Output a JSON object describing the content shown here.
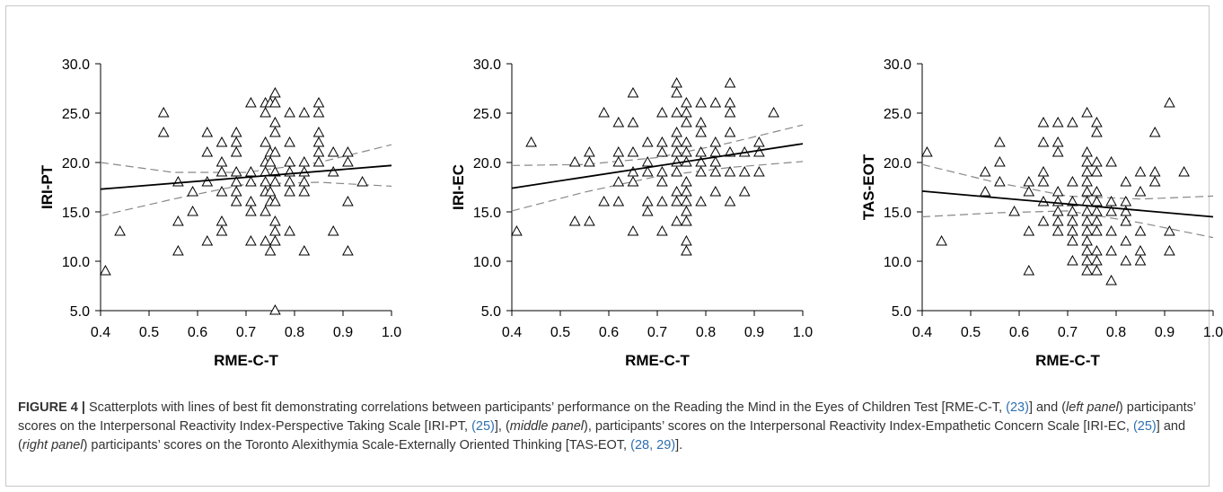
{
  "caption": {
    "label": "FIGURE 4 |",
    "segments": [
      {
        "t": " Scatterplots with lines of best fit demonstrating correlations between participants’ performance on the Reading the Mind in the Eyes of Children Test [RME-C-T, "
      },
      {
        "t": "(23)",
        "cite": true
      },
      {
        "t": "] and ("
      },
      {
        "t": "left panel",
        "i": true
      },
      {
        "t": ") participants’ scores on the Interpersonal Reactivity Index-Perspective Taking Scale [IRI-PT, "
      },
      {
        "t": "(25)",
        "cite": true
      },
      {
        "t": "], ("
      },
      {
        "t": "middle panel",
        "i": true
      },
      {
        "t": "), participants’ scores on the Interpersonal Reactivity Index-Empathetic Concern Scale [IRI-EC, "
      },
      {
        "t": "(25)",
        "cite": true
      },
      {
        "t": "] and ("
      },
      {
        "t": "right panel",
        "i": true
      },
      {
        "t": ") participants’ scores on the Toronto Alexithymia Scale-Externally Oriented Thinking [TAS-EOT, "
      },
      {
        "t": "(28, 29)",
        "cite": true
      },
      {
        "t": "]."
      }
    ]
  },
  "colors": {
    "cite": "#2f6fb0",
    "text": "#333333",
    "line": "#000000",
    "ci": "#888888"
  },
  "chart_data": [
    {
      "type": "scatter",
      "xlabel": "RME-C-T",
      "ylabel": "IRI-PT",
      "xlim": [
        0.4,
        1.0
      ],
      "ylim": [
        5.0,
        30.0
      ],
      "xticks": [
        "0.4",
        "0.5",
        "0.6",
        "0.7",
        "0.8",
        "0.9",
        "1.0"
      ],
      "yticks": [
        "5.0",
        "10.0",
        "15.0",
        "20.0",
        "25.0",
        "30.0"
      ],
      "marker": "open-triangle",
      "fit": {
        "x": [
          0.4,
          1.0
        ],
        "y": [
          17.3,
          19.7
        ]
      },
      "ci_upper": {
        "x": [
          0.4,
          0.55,
          0.7,
          0.85,
          1.0
        ],
        "y": [
          20.0,
          19.0,
          19.0,
          20.0,
          21.8
        ]
      },
      "ci_lower": {
        "x": [
          0.4,
          0.55,
          0.7,
          0.85,
          1.0
        ],
        "y": [
          14.6,
          16.3,
          17.8,
          18.0,
          17.6
        ]
      },
      "points": [
        [
          0.41,
          9
        ],
        [
          0.44,
          13
        ],
        [
          0.53,
          25
        ],
        [
          0.53,
          23
        ],
        [
          0.56,
          18
        ],
        [
          0.56,
          14
        ],
        [
          0.56,
          11
        ],
        [
          0.59,
          15
        ],
        [
          0.59,
          17
        ],
        [
          0.62,
          23
        ],
        [
          0.62,
          21
        ],
        [
          0.62,
          18
        ],
        [
          0.62,
          12
        ],
        [
          0.65,
          22
        ],
        [
          0.65,
          20
        ],
        [
          0.65,
          19
        ],
        [
          0.65,
          17
        ],
        [
          0.65,
          14
        ],
        [
          0.65,
          13
        ],
        [
          0.68,
          23
        ],
        [
          0.68,
          22
        ],
        [
          0.68,
          21
        ],
        [
          0.68,
          19
        ],
        [
          0.68,
          18
        ],
        [
          0.68,
          17
        ],
        [
          0.68,
          16
        ],
        [
          0.71,
          26
        ],
        [
          0.71,
          19
        ],
        [
          0.71,
          18
        ],
        [
          0.71,
          16
        ],
        [
          0.71,
          15
        ],
        [
          0.71,
          12
        ],
        [
          0.74,
          26
        ],
        [
          0.74,
          25
        ],
        [
          0.74,
          22
        ],
        [
          0.74,
          20
        ],
        [
          0.74,
          19
        ],
        [
          0.74,
          18
        ],
        [
          0.74,
          17
        ],
        [
          0.74,
          15
        ],
        [
          0.74,
          12
        ],
        [
          0.75,
          26
        ],
        [
          0.75,
          21
        ],
        [
          0.75,
          20
        ],
        [
          0.75,
          17
        ],
        [
          0.75,
          16
        ],
        [
          0.75,
          11
        ],
        [
          0.76,
          27
        ],
        [
          0.76,
          26
        ],
        [
          0.76,
          24
        ],
        [
          0.76,
          23
        ],
        [
          0.76,
          21
        ],
        [
          0.76,
          19
        ],
        [
          0.76,
          18
        ],
        [
          0.76,
          16
        ],
        [
          0.76,
          14
        ],
        [
          0.76,
          13
        ],
        [
          0.76,
          12
        ],
        [
          0.76,
          5
        ],
        [
          0.79,
          25
        ],
        [
          0.79,
          22
        ],
        [
          0.79,
          20
        ],
        [
          0.79,
          19
        ],
        [
          0.79,
          18
        ],
        [
          0.79,
          17
        ],
        [
          0.79,
          13
        ],
        [
          0.82,
          25
        ],
        [
          0.82,
          20
        ],
        [
          0.82,
          19
        ],
        [
          0.82,
          18
        ],
        [
          0.82,
          17
        ],
        [
          0.82,
          11
        ],
        [
          0.85,
          26
        ],
        [
          0.85,
          25
        ],
        [
          0.85,
          23
        ],
        [
          0.85,
          22
        ],
        [
          0.85,
          21
        ],
        [
          0.85,
          20
        ],
        [
          0.88,
          21
        ],
        [
          0.88,
          19
        ],
        [
          0.88,
          13
        ],
        [
          0.91,
          21
        ],
        [
          0.91,
          20
        ],
        [
          0.91,
          16
        ],
        [
          0.91,
          11
        ],
        [
          0.94,
          18
        ]
      ]
    },
    {
      "type": "scatter",
      "xlabel": "RME-C-T",
      "ylabel": "IRI-EC",
      "xlim": [
        0.4,
        1.0
      ],
      "ylim": [
        5.0,
        30.0
      ],
      "xticks": [
        "0.4",
        "0.5",
        "0.6",
        "0.7",
        "0.8",
        "0.9",
        "1.0"
      ],
      "yticks": [
        "5.0",
        "10.0",
        "15.0",
        "20.0",
        "25.0",
        "30.0"
      ],
      "marker": "open-triangle",
      "fit": {
        "x": [
          0.4,
          1.0
        ],
        "y": [
          17.4,
          21.9
        ]
      },
      "ci_upper": {
        "x": [
          0.4,
          0.55,
          0.7,
          0.85,
          1.0
        ],
        "y": [
          19.7,
          19.8,
          20.5,
          22.0,
          23.8
        ]
      },
      "ci_lower": {
        "x": [
          0.4,
          0.55,
          0.7,
          0.85,
          1.0
        ],
        "y": [
          15.1,
          17.0,
          18.6,
          19.5,
          20.1
        ]
      },
      "points": [
        [
          0.41,
          13
        ],
        [
          0.44,
          22
        ],
        [
          0.53,
          20
        ],
        [
          0.53,
          14
        ],
        [
          0.56,
          21
        ],
        [
          0.56,
          20
        ],
        [
          0.56,
          14
        ],
        [
          0.59,
          25
        ],
        [
          0.59,
          16
        ],
        [
          0.62,
          24
        ],
        [
          0.62,
          21
        ],
        [
          0.62,
          20
        ],
        [
          0.62,
          18
        ],
        [
          0.62,
          16
        ],
        [
          0.65,
          27
        ],
        [
          0.65,
          24
        ],
        [
          0.65,
          21
        ],
        [
          0.65,
          19
        ],
        [
          0.65,
          18
        ],
        [
          0.65,
          13
        ],
        [
          0.68,
          22
        ],
        [
          0.68,
          20
        ],
        [
          0.68,
          19
        ],
        [
          0.68,
          16
        ],
        [
          0.68,
          15
        ],
        [
          0.71,
          25
        ],
        [
          0.71,
          22
        ],
        [
          0.71,
          21
        ],
        [
          0.71,
          19
        ],
        [
          0.71,
          18
        ],
        [
          0.71,
          16
        ],
        [
          0.71,
          13
        ],
        [
          0.74,
          28
        ],
        [
          0.74,
          27
        ],
        [
          0.74,
          25
        ],
        [
          0.74,
          23
        ],
        [
          0.74,
          22
        ],
        [
          0.74,
          21
        ],
        [
          0.74,
          20
        ],
        [
          0.74,
          19
        ],
        [
          0.74,
          17
        ],
        [
          0.74,
          16
        ],
        [
          0.74,
          14
        ],
        [
          0.76,
          26
        ],
        [
          0.76,
          25
        ],
        [
          0.76,
          24
        ],
        [
          0.76,
          22
        ],
        [
          0.76,
          21
        ],
        [
          0.76,
          20
        ],
        [
          0.76,
          18
        ],
        [
          0.76,
          17
        ],
        [
          0.76,
          16
        ],
        [
          0.76,
          15
        ],
        [
          0.76,
          14
        ],
        [
          0.76,
          12
        ],
        [
          0.76,
          11
        ],
        [
          0.79,
          26
        ],
        [
          0.79,
          24
        ],
        [
          0.79,
          23
        ],
        [
          0.79,
          21
        ],
        [
          0.79,
          20
        ],
        [
          0.79,
          19
        ],
        [
          0.79,
          16
        ],
        [
          0.82,
          26
        ],
        [
          0.82,
          22
        ],
        [
          0.82,
          21
        ],
        [
          0.82,
          20
        ],
        [
          0.82,
          19
        ],
        [
          0.82,
          17
        ],
        [
          0.85,
          28
        ],
        [
          0.85,
          26
        ],
        [
          0.85,
          25
        ],
        [
          0.85,
          23
        ],
        [
          0.85,
          21
        ],
        [
          0.85,
          19
        ],
        [
          0.85,
          16
        ],
        [
          0.88,
          21
        ],
        [
          0.88,
          19
        ],
        [
          0.88,
          17
        ],
        [
          0.91,
          22
        ],
        [
          0.91,
          21
        ],
        [
          0.91,
          19
        ],
        [
          0.94,
          25
        ]
      ]
    },
    {
      "type": "scatter",
      "xlabel": "RME-C-T",
      "ylabel": "TAS-EOT",
      "xlim": [
        0.4,
        1.0
      ],
      "ylim": [
        5.0,
        30.0
      ],
      "xticks": [
        "0.4",
        "0.5",
        "0.6",
        "0.7",
        "0.8",
        "0.9",
        "1.0"
      ],
      "yticks": [
        "5.0",
        "10.0",
        "15.0",
        "20.0",
        "25.0",
        "30.0"
      ],
      "marker": "open-triangle",
      "fit": {
        "x": [
          0.4,
          1.0
        ],
        "y": [
          17.1,
          14.5
        ]
      },
      "ci_upper": {
        "x": [
          0.4,
          0.55,
          0.7,
          0.85,
          1.0
        ],
        "y": [
          19.8,
          18.0,
          16.6,
          16.3,
          16.6
        ]
      },
      "ci_lower": {
        "x": [
          0.4,
          0.55,
          0.7,
          0.85,
          1.0
        ],
        "y": [
          14.5,
          14.9,
          15.1,
          13.9,
          12.4
        ]
      },
      "points": [
        [
          0.41,
          21
        ],
        [
          0.44,
          12
        ],
        [
          0.53,
          19
        ],
        [
          0.53,
          17
        ],
        [
          0.56,
          22
        ],
        [
          0.56,
          20
        ],
        [
          0.56,
          18
        ],
        [
          0.59,
          15
        ],
        [
          0.62,
          18
        ],
        [
          0.62,
          17
        ],
        [
          0.62,
          13
        ],
        [
          0.62,
          9
        ],
        [
          0.65,
          24
        ],
        [
          0.65,
          22
        ],
        [
          0.65,
          19
        ],
        [
          0.65,
          18
        ],
        [
          0.65,
          16
        ],
        [
          0.65,
          14
        ],
        [
          0.68,
          24
        ],
        [
          0.68,
          22
        ],
        [
          0.68,
          21
        ],
        [
          0.68,
          17
        ],
        [
          0.68,
          16
        ],
        [
          0.68,
          15
        ],
        [
          0.68,
          14
        ],
        [
          0.68,
          13
        ],
        [
          0.71,
          24
        ],
        [
          0.71,
          18
        ],
        [
          0.71,
          16
        ],
        [
          0.71,
          15
        ],
        [
          0.71,
          14
        ],
        [
          0.71,
          13
        ],
        [
          0.71,
          12
        ],
        [
          0.71,
          10
        ],
        [
          0.74,
          25
        ],
        [
          0.74,
          21
        ],
        [
          0.74,
          20
        ],
        [
          0.74,
          19
        ],
        [
          0.74,
          18
        ],
        [
          0.74,
          17
        ],
        [
          0.74,
          16
        ],
        [
          0.74,
          15
        ],
        [
          0.74,
          14
        ],
        [
          0.74,
          13
        ],
        [
          0.74,
          12
        ],
        [
          0.74,
          11
        ],
        [
          0.74,
          10
        ],
        [
          0.74,
          9
        ],
        [
          0.76,
          24
        ],
        [
          0.76,
          23
        ],
        [
          0.76,
          20
        ],
        [
          0.76,
          19
        ],
        [
          0.76,
          17
        ],
        [
          0.76,
          16
        ],
        [
          0.76,
          15
        ],
        [
          0.76,
          14
        ],
        [
          0.76,
          13
        ],
        [
          0.76,
          11
        ],
        [
          0.76,
          10
        ],
        [
          0.76,
          9
        ],
        [
          0.79,
          20
        ],
        [
          0.79,
          16
        ],
        [
          0.79,
          15
        ],
        [
          0.79,
          13
        ],
        [
          0.79,
          11
        ],
        [
          0.79,
          8
        ],
        [
          0.82,
          18
        ],
        [
          0.82,
          16
        ],
        [
          0.82,
          15
        ],
        [
          0.82,
          14
        ],
        [
          0.82,
          12
        ],
        [
          0.82,
          10
        ],
        [
          0.85,
          19
        ],
        [
          0.85,
          17
        ],
        [
          0.85,
          13
        ],
        [
          0.85,
          11
        ],
        [
          0.85,
          10
        ],
        [
          0.88,
          23
        ],
        [
          0.88,
          19
        ],
        [
          0.88,
          18
        ],
        [
          0.91,
          26
        ],
        [
          0.91,
          13
        ],
        [
          0.91,
          11
        ],
        [
          0.94,
          19
        ]
      ]
    }
  ]
}
